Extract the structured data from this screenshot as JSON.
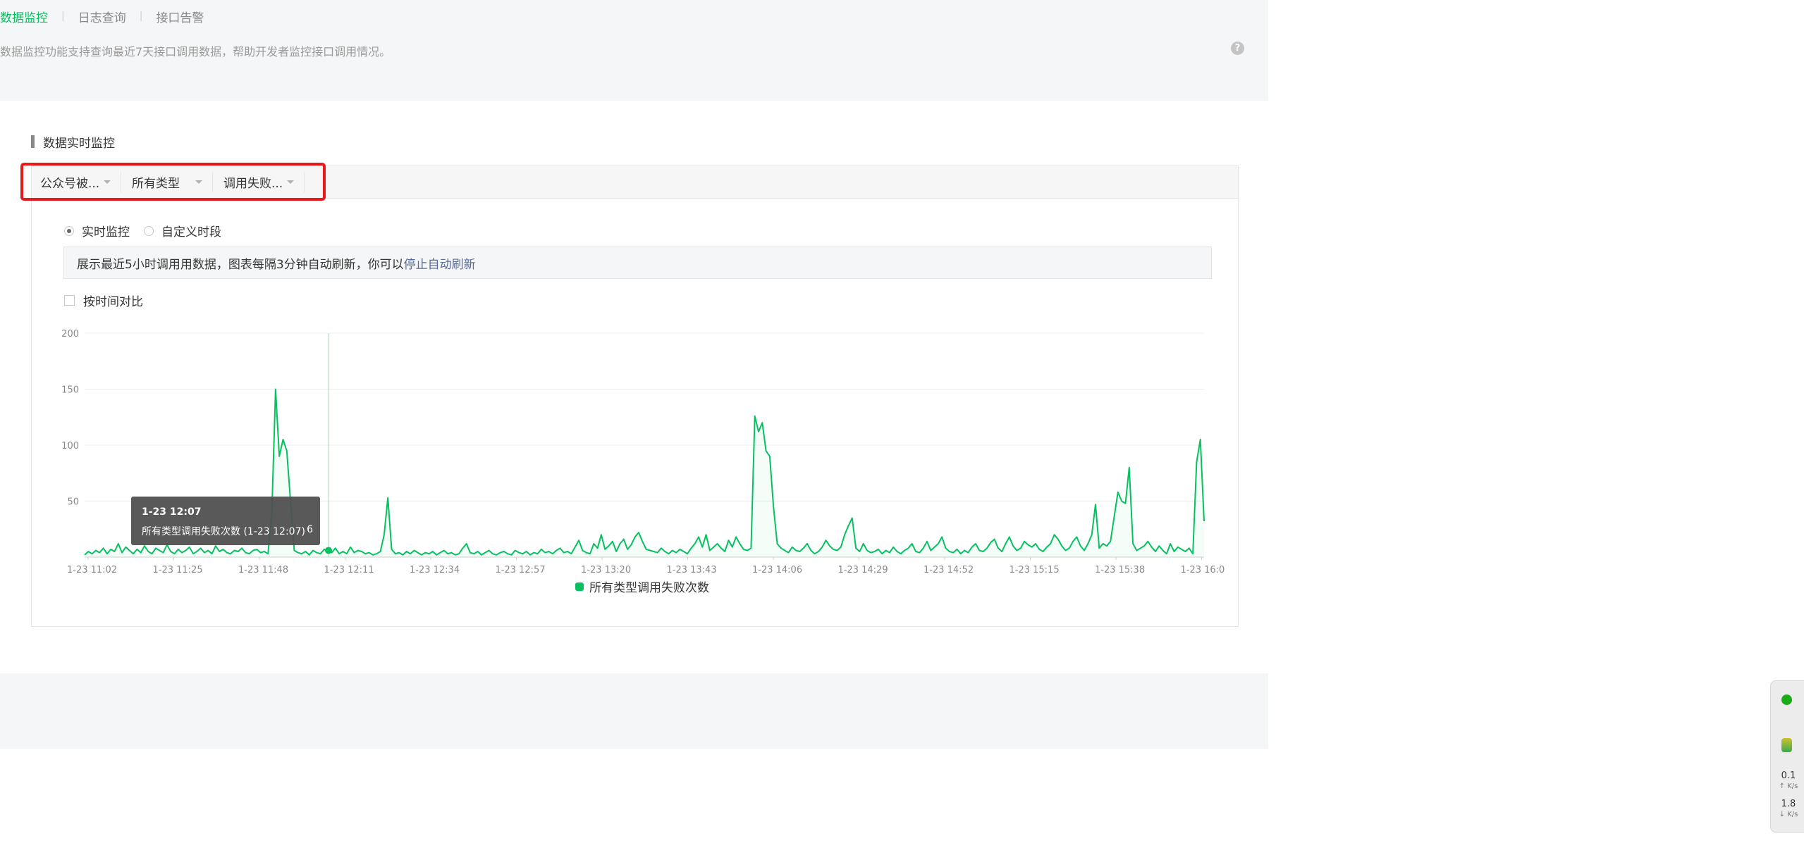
{
  "nav": {
    "tabs": [
      {
        "label": "数据监控",
        "active": true
      },
      {
        "label": "日志查询",
        "active": false
      },
      {
        "label": "接口告警",
        "active": false
      }
    ],
    "separator": "|"
  },
  "description": "数据监控功能支持查询最近7天接口调用数据，帮助开发者监控接口调用情况。",
  "help_icon": "?",
  "section_title": "数据实时监控",
  "filters": [
    {
      "value": "公众号被..."
    },
    {
      "value": "所有类型"
    },
    {
      "value": "调用失败..."
    }
  ],
  "mode": {
    "options": [
      {
        "label": "实时监控",
        "checked": true
      },
      {
        "label": "自定义时段",
        "checked": false
      }
    ]
  },
  "notice": {
    "text": "展示最近5小时调用用数据，图表每隔3分钟自动刷新，你可以",
    "link": "停止自动刷新"
  },
  "compare_label": "按时间对比",
  "tooltip": {
    "title": "1-23 12:07",
    "label": "所有类型调用失败次数 (1-23 12:07)",
    "value": "6"
  },
  "colors": {
    "accent": "#07c160",
    "link": "#576b95",
    "highlight": "#e8191a"
  },
  "chart_data": {
    "type": "line",
    "ylim": [
      0,
      200
    ],
    "yticks": [
      200,
      150,
      100,
      50
    ],
    "xticks": [
      "1-23 11:02",
      "1-23 11:25",
      "1-23 11:48",
      "1-23 12:11",
      "1-23 12:34",
      "1-23 12:57",
      "1-23 13:20",
      "1-23 13:43",
      "1-23 14:06",
      "1-23 14:29",
      "1-23 14:52",
      "1-23 15:15",
      "1-23 15:38",
      "1-23 16:0"
    ],
    "legend": {
      "position": "bottom",
      "entries": [
        "所有类型调用失败次数"
      ]
    },
    "grid": true,
    "hover": {
      "x": "1-23 12:07",
      "value": 6
    },
    "series": [
      {
        "name": "所有类型调用失败次数",
        "color": "#07c160",
        "values": [
          2,
          5,
          3,
          6,
          4,
          8,
          3,
          7,
          5,
          12,
          4,
          9,
          6,
          3,
          7,
          4,
          10,
          5,
          3,
          8,
          6,
          4,
          11,
          5,
          3,
          7,
          4,
          6,
          9,
          3,
          5,
          8,
          4,
          6,
          3,
          10,
          5,
          7,
          4,
          3,
          6,
          5,
          8,
          4,
          3,
          6,
          7,
          4,
          5,
          3,
          40,
          150,
          90,
          105,
          95,
          50,
          6,
          4,
          3,
          5,
          2,
          6,
          4,
          3,
          7,
          5,
          4,
          8,
          3,
          5,
          3,
          9,
          4,
          6,
          5,
          3,
          4,
          2,
          3,
          5,
          20,
          53,
          7,
          3,
          4,
          2,
          5,
          3,
          6,
          4,
          2,
          4,
          3,
          5,
          2,
          4,
          6,
          3,
          4,
          2,
          3,
          8,
          12,
          4,
          3,
          5,
          2,
          4,
          6,
          3,
          2,
          4,
          5,
          3,
          2,
          6,
          4,
          3,
          5,
          2,
          4,
          3,
          7,
          4,
          5,
          3,
          6,
          8,
          4,
          5,
          3,
          9,
          15,
          6,
          4,
          3,
          12,
          8,
          20,
          7,
          10,
          14,
          5,
          12,
          16,
          7,
          11,
          18,
          22,
          14,
          7,
          6,
          5,
          4,
          8,
          5,
          3,
          6,
          4,
          7,
          5,
          3,
          8,
          12,
          18,
          9,
          20,
          6,
          9,
          12,
          8,
          5,
          15,
          9,
          18,
          12,
          7,
          6,
          8,
          126,
          112,
          120,
          95,
          90,
          45,
          12,
          8,
          6,
          4,
          9,
          6,
          5,
          8,
          12,
          6,
          3,
          5,
          9,
          15,
          10,
          7,
          6,
          9,
          20,
          28,
          35,
          8,
          5,
          12,
          6,
          4,
          5,
          7,
          3,
          6,
          4,
          9,
          5,
          3,
          6,
          8,
          12,
          5,
          4,
          8,
          14,
          6,
          9,
          12,
          18,
          8,
          5,
          4,
          7,
          3,
          6,
          4,
          9,
          12,
          6,
          5,
          8,
          13,
          16,
          8,
          5,
          12,
          18,
          10,
          6,
          8,
          14,
          11,
          9,
          12,
          7,
          5,
          9,
          12,
          20,
          16,
          10,
          6,
          8,
          14,
          18,
          10,
          6,
          12,
          20,
          47,
          8,
          12,
          10,
          14,
          36,
          58,
          50,
          48,
          80,
          12,
          6,
          8,
          10,
          14,
          9,
          5,
          10,
          6,
          3,
          12,
          5,
          9,
          7,
          5,
          8,
          3,
          85,
          105,
          32
        ]
      }
    ]
  }
}
